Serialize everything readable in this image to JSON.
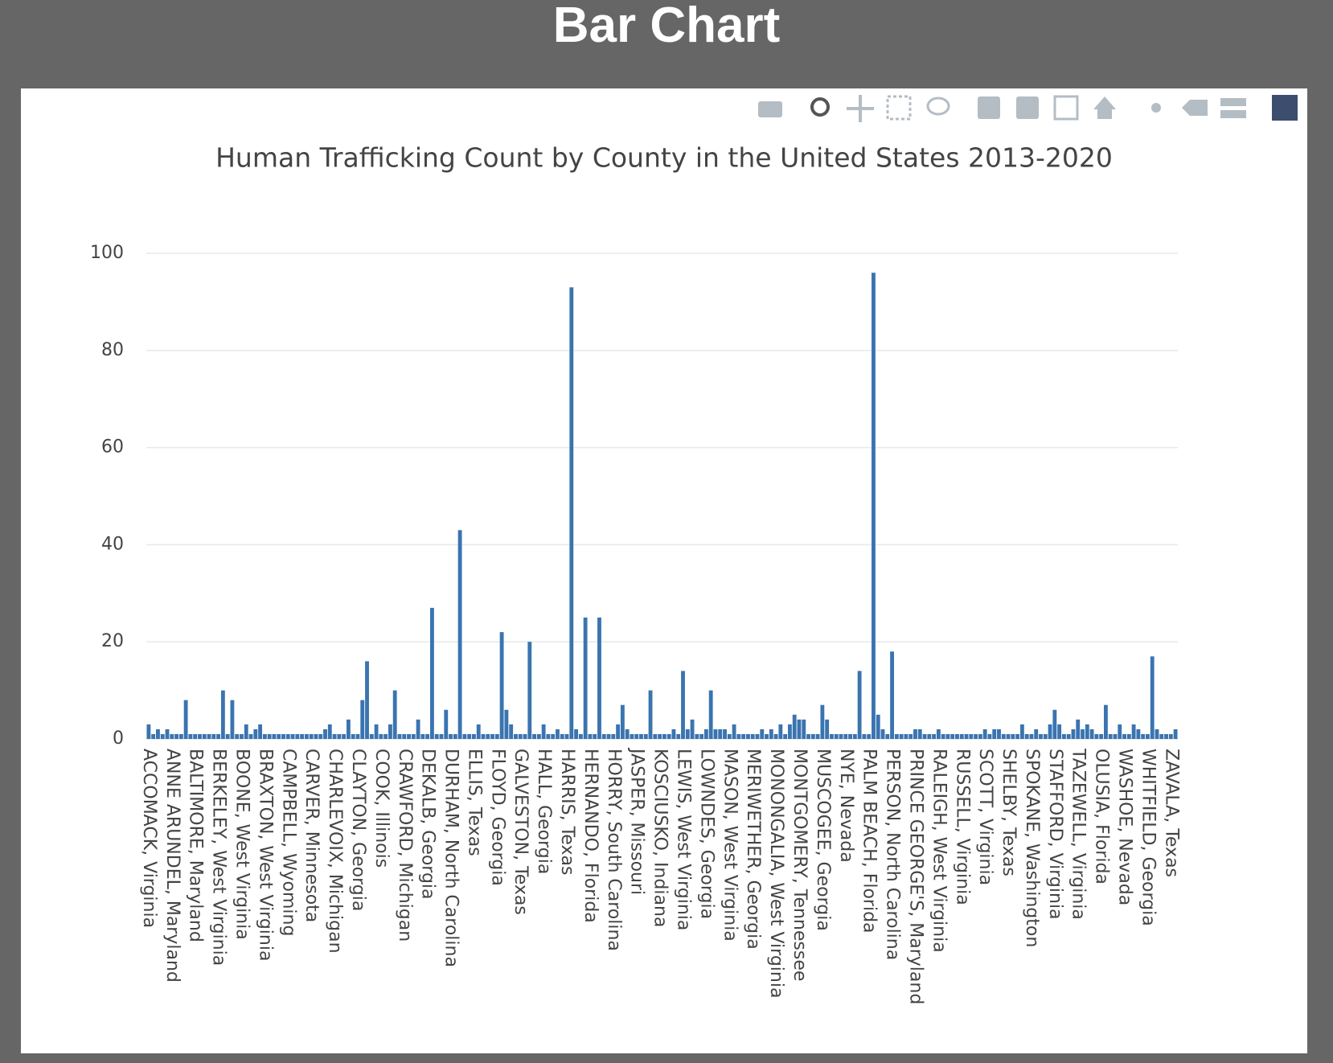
{
  "page_title": "Bar Chart",
  "chart_data": {
    "type": "bar",
    "title": "Human Trafficking Count by County in the United States 2013-2020",
    "color": "#3a74b0",
    "grid": true,
    "ylim": [
      0,
      101
    ],
    "yticks": [
      0,
      20,
      40,
      60,
      80,
      100
    ],
    "categories": [
      "ACCOMACK, Virginia",
      null,
      null,
      null,
      null,
      "ANNE ARUNDEL, Maryland",
      null,
      null,
      null,
      null,
      "BALTIMORE, Maryland",
      null,
      null,
      null,
      null,
      "BERKELEY, West Virginia",
      null,
      null,
      null,
      null,
      "BOONE, West Virginia",
      null,
      null,
      null,
      null,
      "BRAXTON, West Virginia",
      null,
      null,
      null,
      null,
      "CAMPBELL, Wyoming",
      null,
      null,
      null,
      null,
      "CARVER, Minnesota",
      null,
      null,
      null,
      null,
      "CHARLEVOIX, Michigan",
      null,
      null,
      null,
      null,
      "CLAYTON, Georgia",
      null,
      null,
      null,
      null,
      "COOK, Illinois",
      null,
      null,
      null,
      null,
      "CRAWFORD, Michigan",
      null,
      null,
      null,
      null,
      "DEKALB, Georgia",
      null,
      null,
      null,
      null,
      "DURHAM, North Carolina",
      null,
      null,
      null,
      null,
      "ELLIS, Texas",
      null,
      null,
      null,
      null,
      "FLOYD, Georgia",
      null,
      null,
      null,
      null,
      "GALVESTON, Texas",
      null,
      null,
      null,
      null,
      "HALL, Georgia",
      null,
      null,
      null,
      null,
      "HARRIS, Texas",
      null,
      null,
      null,
      null,
      "HERNANDO, Florida",
      null,
      null,
      null,
      null,
      "HORRY, South Carolina",
      null,
      null,
      null,
      null,
      "JASPER, Missouri",
      null,
      null,
      null,
      null,
      "KOSCIUSKO, Indiana",
      null,
      null,
      null,
      null,
      "LEWIS, West Virginia",
      null,
      null,
      null,
      null,
      "LOWNDES, Georgia",
      null,
      null,
      null,
      null,
      "MASON, West Virginia",
      null,
      null,
      null,
      null,
      "MERIWETHER, Georgia",
      null,
      null,
      null,
      null,
      "MONONGALIA, West Virginia",
      null,
      null,
      null,
      null,
      "MONTGOMERY, Tennessee",
      null,
      null,
      null,
      null,
      "MUSCOGEE, Georgia",
      null,
      null,
      null,
      null,
      "NYE, Nevada",
      null,
      null,
      null,
      null,
      "PALM BEACH, Florida",
      null,
      null,
      null,
      null,
      "PERSON, North Carolina",
      null,
      null,
      null,
      null,
      "PRINCE GEORGE'S, Maryland",
      null,
      null,
      null,
      null,
      "RALEIGH, West Virginia",
      null,
      null,
      null,
      null,
      "RUSSELL, Virginia",
      null,
      null,
      null,
      null,
      "SCOTT, Virginia",
      null,
      null,
      null,
      null,
      "SHELBY, Texas",
      null,
      null,
      null,
      null,
      "SPOKANE, Washington",
      null,
      null,
      null,
      null,
      "STAFFORD, Virginia",
      null,
      null,
      null,
      null,
      "TAZEWELL, Virginia",
      null,
      null,
      null,
      null,
      "OLUSIA, Florida",
      null,
      null,
      null,
      null,
      "WASHOE, Nevada",
      null,
      null,
      null,
      null,
      "WHITFIELD, Georgia",
      null,
      null,
      null,
      null,
      "ZAVALA, Texas",
      null
    ],
    "values": [
      3,
      1,
      2,
      1,
      2,
      1,
      1,
      1,
      8,
      1,
      1,
      1,
      1,
      1,
      1,
      1,
      10,
      1,
      8,
      1,
      1,
      3,
      1,
      2,
      3,
      1,
      1,
      1,
      1,
      1,
      1,
      1,
      1,
      1,
      1,
      1,
      1,
      1,
      2,
      3,
      1,
      1,
      1,
      4,
      1,
      1,
      8,
      16,
      1,
      3,
      1,
      1,
      3,
      10,
      1,
      1,
      1,
      1,
      4,
      1,
      1,
      27,
      1,
      1,
      6,
      1,
      1,
      43,
      1,
      1,
      1,
      3,
      1,
      1,
      1,
      1,
      22,
      6,
      3,
      1,
      1,
      1,
      20,
      1,
      1,
      3,
      1,
      1,
      2,
      1,
      1,
      93,
      2,
      1,
      25,
      1,
      1,
      25,
      1,
      1,
      1,
      3,
      7,
      2,
      1,
      1,
      1,
      1,
      10,
      1,
      1,
      1,
      1,
      2,
      1,
      14,
      2,
      4,
      1,
      1,
      2,
      10,
      2,
      2,
      2,
      1,
      3,
      1,
      1,
      1,
      1,
      1,
      2,
      1,
      2,
      1,
      3,
      1,
      3,
      5,
      4,
      4,
      1,
      1,
      1,
      7,
      4,
      1,
      1,
      1,
      1,
      1,
      1,
      14,
      1,
      1,
      96,
      5,
      2,
      1,
      18,
      1,
      1,
      1,
      1,
      2,
      2,
      1,
      1,
      1,
      2,
      1,
      1,
      1,
      1,
      1,
      1,
      1,
      1,
      1,
      2,
      1,
      2,
      2,
      1,
      1,
      1,
      1,
      3,
      1,
      1,
      2,
      1,
      1,
      3,
      6,
      3,
      1,
      1,
      2,
      4,
      2,
      3,
      2,
      1,
      1,
      7,
      1,
      1,
      3,
      1,
      1,
      3,
      2,
      1,
      1,
      17,
      2,
      1,
      1,
      1,
      2
    ]
  }
}
